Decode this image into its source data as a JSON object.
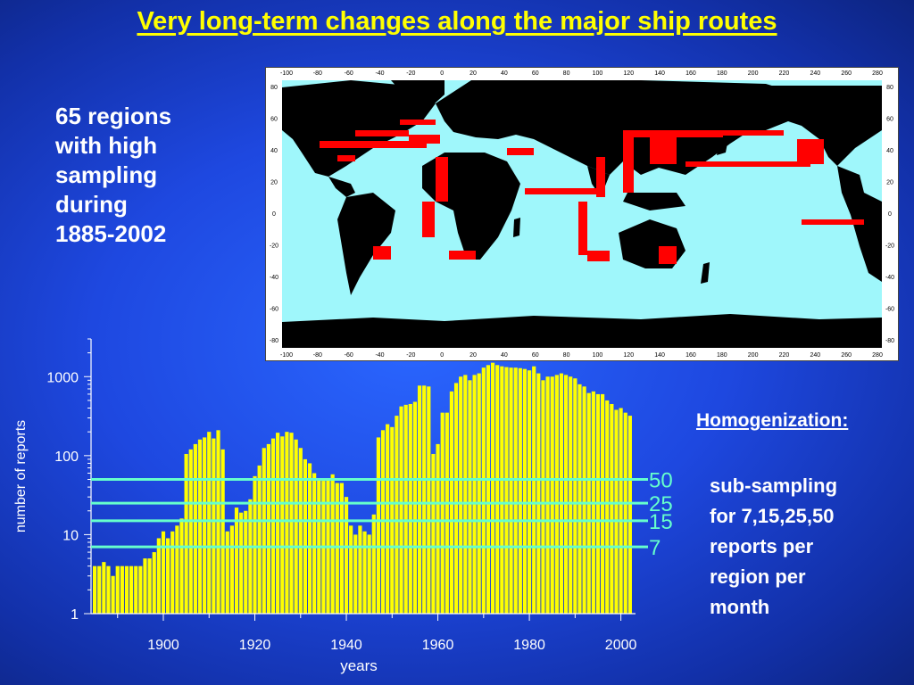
{
  "slide": {
    "title": "Very long-term changes along the major ship routes",
    "left_note": [
      "65 regions",
      "with high",
      "sampling",
      "during",
      "1885-2002"
    ],
    "homogenization_title": "Homogenization:",
    "homogenization_text": [
      "sub-sampling",
      "for 7,15,25,50",
      "reports per",
      "region per",
      "month"
    ]
  },
  "map": {
    "x_ticks": [
      "-100",
      "-80",
      "-60",
      "-40",
      "-20",
      "0",
      "20",
      "40",
      "60",
      "80",
      "100",
      "120",
      "140",
      "160",
      "180",
      "200",
      "220",
      "240",
      "260",
      "280"
    ],
    "y_ticks": [
      "80",
      "60",
      "40",
      "20",
      "0",
      "-20",
      "-40",
      "-60",
      "-80"
    ],
    "colors": {
      "ocean": "#9ff7fb",
      "land": "#000000",
      "regions": "#ff0000"
    }
  },
  "chart_data": {
    "type": "bar",
    "xlabel": "years",
    "ylabel": "number of reports",
    "y_scale": "log",
    "ylim": [
      1,
      3000
    ],
    "xlim": [
      1885,
      2004
    ],
    "x_tick_labels": [
      "1900",
      "1920",
      "1940",
      "1960",
      "1980",
      "2000"
    ],
    "y_tick_labels": [
      "1",
      "10",
      "100",
      "1000"
    ],
    "bar_color": "#ffff00",
    "x": [
      1885,
      1886,
      1887,
      1888,
      1889,
      1890,
      1891,
      1892,
      1893,
      1894,
      1895,
      1896,
      1897,
      1898,
      1899,
      1900,
      1901,
      1902,
      1903,
      1904,
      1905,
      1906,
      1907,
      1908,
      1909,
      1910,
      1911,
      1912,
      1913,
      1914,
      1915,
      1916,
      1917,
      1918,
      1919,
      1920,
      1921,
      1922,
      1923,
      1924,
      1925,
      1926,
      1927,
      1928,
      1929,
      1930,
      1931,
      1932,
      1933,
      1934,
      1935,
      1936,
      1937,
      1938,
      1939,
      1940,
      1941,
      1942,
      1943,
      1944,
      1945,
      1946,
      1947,
      1948,
      1949,
      1950,
      1951,
      1952,
      1953,
      1954,
      1955,
      1956,
      1957,
      1958,
      1959,
      1960,
      1961,
      1962,
      1963,
      1964,
      1965,
      1966,
      1967,
      1968,
      1969,
      1970,
      1971,
      1972,
      1973,
      1974,
      1975,
      1976,
      1977,
      1978,
      1979,
      1980,
      1981,
      1982,
      1983,
      1984,
      1985,
      1986,
      1987,
      1988,
      1989,
      1990,
      1991,
      1992,
      1993,
      1994,
      1995,
      1996,
      1997,
      1998,
      1999,
      2000,
      2001,
      2002
    ],
    "values": [
      4,
      4,
      4.5,
      4,
      3,
      4,
      4,
      4,
      4,
      4,
      4,
      5,
      5,
      6,
      9,
      11,
      9,
      11,
      13,
      16,
      105,
      120,
      140,
      160,
      170,
      200,
      165,
      210,
      120,
      11,
      13,
      22,
      19,
      20,
      28,
      55,
      75,
      125,
      140,
      165,
      195,
      175,
      200,
      195,
      160,
      125,
      90,
      80,
      60,
      52,
      48,
      50,
      58,
      45,
      45,
      30,
      13,
      10,
      13,
      11,
      10,
      18,
      170,
      210,
      250,
      230,
      320,
      420,
      440,
      450,
      480,
      770,
      770,
      750,
      105,
      140,
      350,
      350,
      650,
      830,
      1000,
      1050,
      900,
      1050,
      1100,
      1300,
      1400,
      1500,
      1400,
      1350,
      1320,
      1300,
      1300,
      1280,
      1250,
      1200,
      1350,
      1100,
      900,
      1000,
      1000,
      1050,
      1100,
      1050,
      1000,
      950,
      800,
      750,
      620,
      650,
      600,
      600,
      500,
      450,
      380,
      400,
      350,
      320
    ],
    "series": [
      {
        "values_ref": "values"
      }
    ],
    "threshold_lines": [
      {
        "value": 50,
        "label": "50"
      },
      {
        "value": 25,
        "label": "25"
      },
      {
        "value": 15,
        "label": "15"
      },
      {
        "value": 7,
        "label": "7"
      }
    ],
    "threshold_color": "#66ffcc",
    "grid": false
  }
}
